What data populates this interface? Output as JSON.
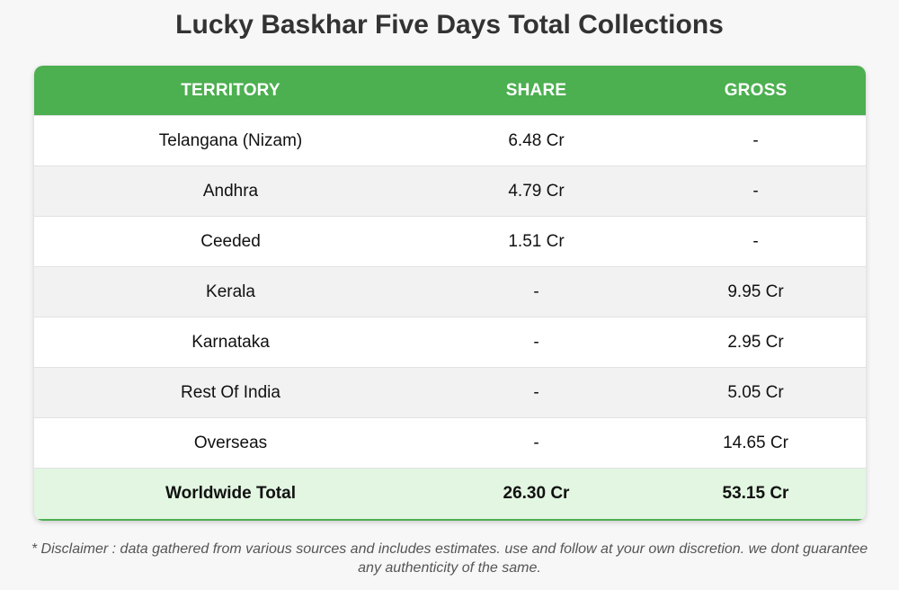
{
  "title": "Lucky Baskhar Five Days Total Collections",
  "table": {
    "headers": [
      "TERRITORY",
      "SHARE",
      "GROSS"
    ],
    "rows": [
      [
        "Telangana (Nizam)",
        "6.48 Cr",
        "-"
      ],
      [
        "Andhra",
        "4.79 Cr",
        "-"
      ],
      [
        "Ceeded",
        "1.51 Cr",
        "-"
      ],
      [
        "Kerala",
        "-",
        "9.95 Cr"
      ],
      [
        "Karnataka",
        "-",
        "2.95 Cr"
      ],
      [
        "Rest Of India",
        "-",
        "5.05 Cr"
      ],
      [
        "Overseas",
        "-",
        "14.65 Cr"
      ]
    ],
    "total": [
      "Worldwide Total",
      "26.30 Cr",
      "53.15 Cr"
    ]
  },
  "disclaimer": "* Disclaimer : data gathered from various sources and includes estimates. use and follow at your own discretion. we dont guarantee any authenticity of the same.",
  "colors": {
    "header_bg": "#4caf50",
    "total_row_bg": "#e2f6e1",
    "alt_row_bg": "#f2f2f2"
  }
}
